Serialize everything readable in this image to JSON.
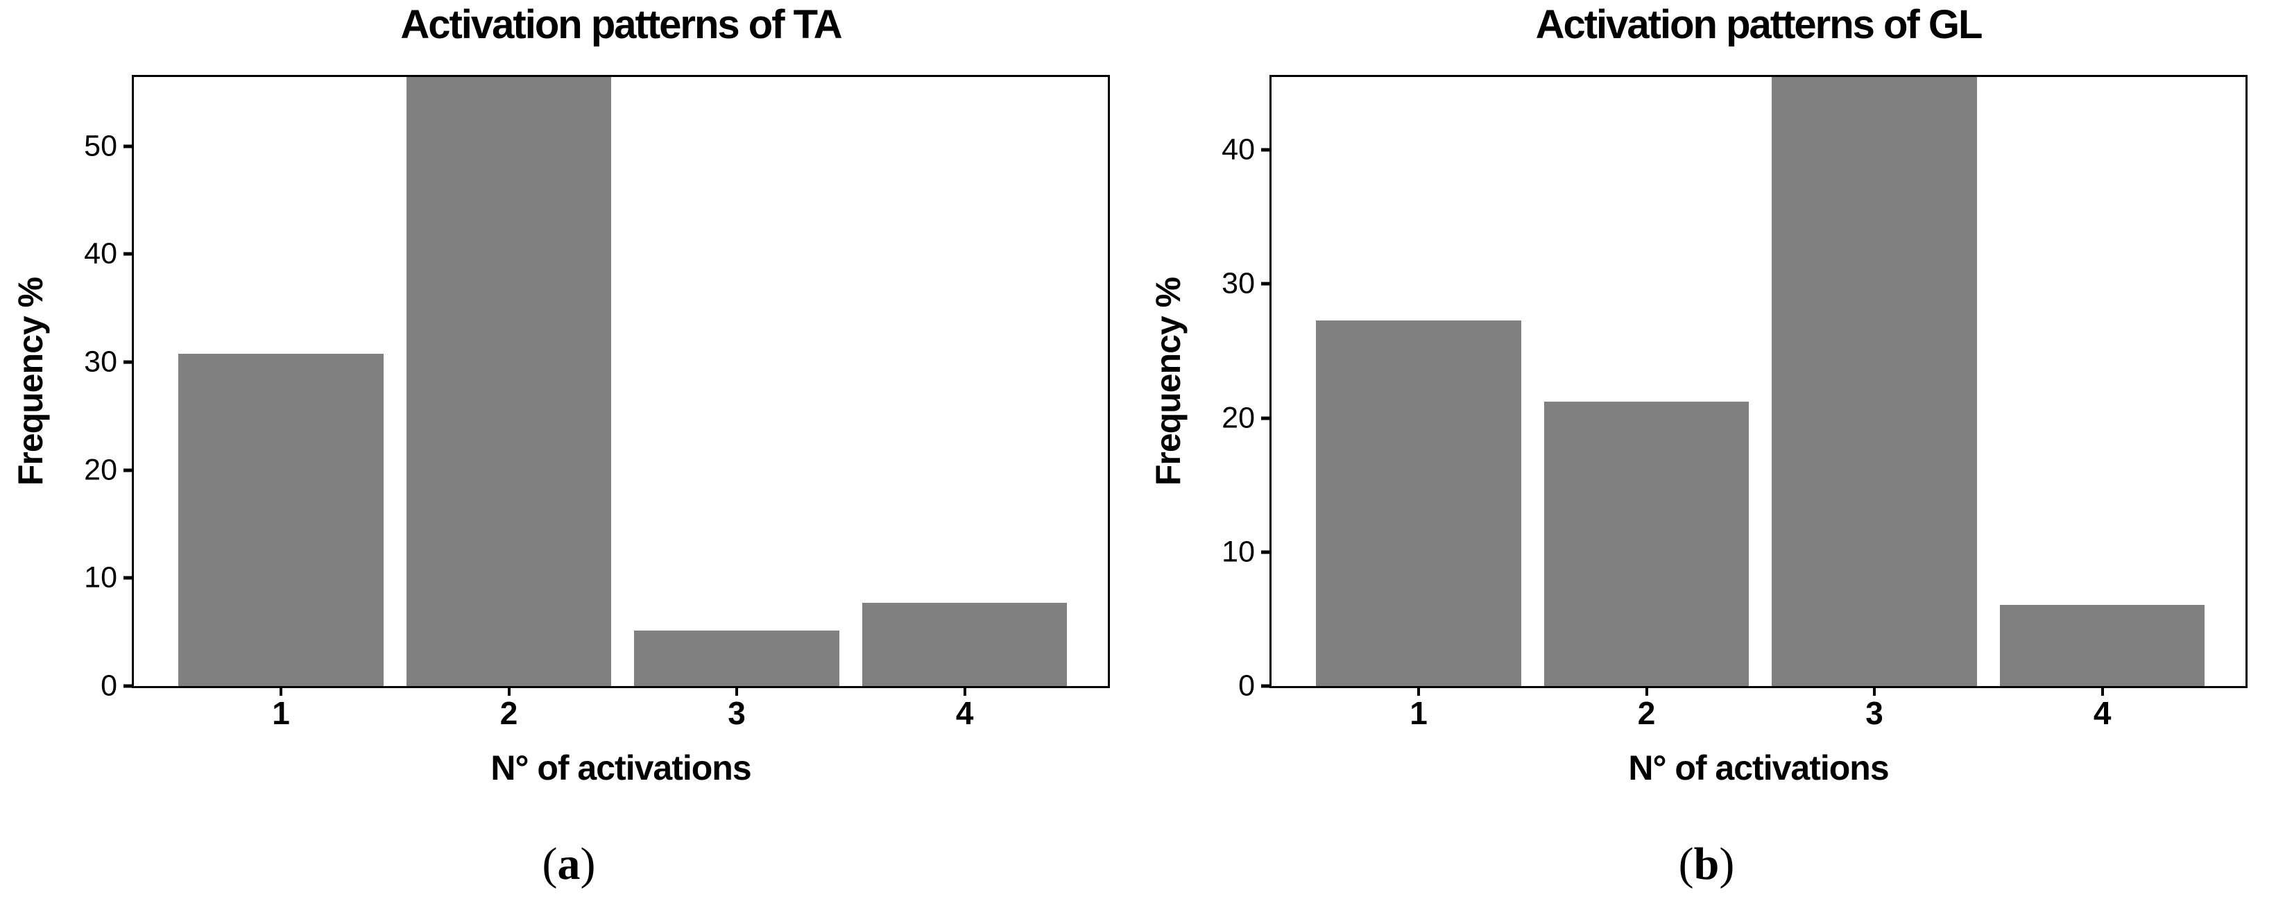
{
  "figure": {
    "captions": [
      {
        "open": "(",
        "letter": "a",
        "close": ")"
      },
      {
        "open": "(",
        "letter": "b",
        "close": ")"
      }
    ]
  },
  "chart_data": [
    {
      "type": "bar",
      "title": "Activation patterns of TA",
      "xlabel": "N° of activations",
      "ylabel": "Frequency %",
      "categories": [
        "1",
        "2",
        "3",
        "4"
      ],
      "values": [
        30.77,
        56.41,
        5.13,
        7.69
      ],
      "yticks": [
        0,
        10,
        20,
        30,
        40,
        50
      ],
      "ylim": [
        0,
        56.41
      ],
      "bar_color": "#808080",
      "grid": false,
      "legend_position": "none"
    },
    {
      "type": "bar",
      "title": "Activation patterns of GL",
      "xlabel": "N° of activations",
      "ylabel": "Frequency %",
      "categories": [
        "1",
        "2",
        "3",
        "4"
      ],
      "values": [
        27.27,
        21.21,
        45.45,
        6.06
      ],
      "yticks": [
        0,
        10,
        20,
        30,
        40
      ],
      "ylim": [
        0,
        45.45
      ],
      "bar_color": "#808080",
      "grid": false,
      "legend_position": "none"
    }
  ]
}
